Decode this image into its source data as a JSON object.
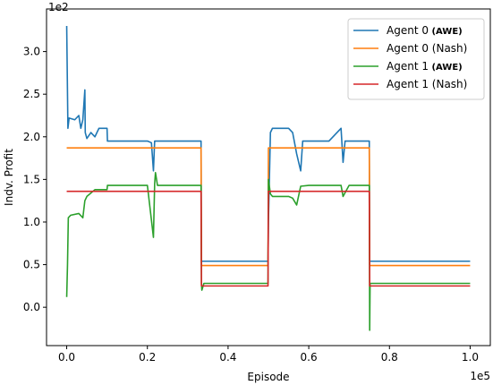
{
  "chart_data": {
    "type": "line",
    "title": "",
    "xlabel": "Episode",
    "ylabel": "Indv. Profit",
    "x_offset_text": "1e5",
    "y_offset_text": "1e2",
    "xlim": [
      -0.05,
      1.05
    ],
    "ylim": [
      -0.45,
      3.5
    ],
    "xticks": [
      0.0,
      0.2,
      0.4,
      0.6,
      0.8,
      1.0
    ],
    "xtick_labels": [
      "0.0",
      "0.2",
      "0.4",
      "0.6",
      "0.8",
      "1.0"
    ],
    "yticks": [
      0.0,
      0.5,
      1.0,
      1.5,
      2.0,
      2.5,
      3.0
    ],
    "ytick_labels": [
      "0.0",
      "0.5",
      "1.0",
      "1.5",
      "2.0",
      "2.5",
      "3.0"
    ],
    "grid": false,
    "legend_position": "top-right",
    "series": [
      {
        "name": "Agent 0",
        "name_suffix": "(AWE)",
        "color": "#1f77b4",
        "points": [
          [
            0.0,
            3.3
          ],
          [
            0.003,
            2.1
          ],
          [
            0.006,
            2.22
          ],
          [
            0.02,
            2.2
          ],
          [
            0.03,
            2.25
          ],
          [
            0.035,
            2.1
          ],
          [
            0.04,
            2.2
          ],
          [
            0.045,
            2.55
          ],
          [
            0.046,
            2.05
          ],
          [
            0.05,
            1.98
          ],
          [
            0.06,
            2.05
          ],
          [
            0.07,
            2.0
          ],
          [
            0.08,
            2.1
          ],
          [
            0.1,
            2.1
          ],
          [
            0.101,
            1.95
          ],
          [
            0.15,
            1.95
          ],
          [
            0.2,
            1.95
          ],
          [
            0.21,
            1.93
          ],
          [
            0.215,
            1.6
          ],
          [
            0.218,
            1.95
          ],
          [
            0.25,
            1.95
          ],
          [
            0.3,
            1.95
          ],
          [
            0.333,
            1.95
          ],
          [
            0.334,
            0.54
          ],
          [
            0.4,
            0.54
          ],
          [
            0.49,
            0.54
          ],
          [
            0.499,
            0.54
          ],
          [
            0.5,
            1.0
          ],
          [
            0.505,
            2.05
          ],
          [
            0.51,
            2.1
          ],
          [
            0.55,
            2.1
          ],
          [
            0.56,
            2.05
          ],
          [
            0.57,
            1.8
          ],
          [
            0.58,
            1.6
          ],
          [
            0.585,
            1.95
          ],
          [
            0.6,
            1.95
          ],
          [
            0.65,
            1.95
          ],
          [
            0.68,
            2.1
          ],
          [
            0.685,
            1.7
          ],
          [
            0.69,
            1.95
          ],
          [
            0.7,
            1.95
          ],
          [
            0.75,
            1.95
          ],
          [
            0.751,
            0.54
          ],
          [
            0.8,
            0.54
          ],
          [
            0.9,
            0.54
          ],
          [
            1.0,
            0.54
          ]
        ]
      },
      {
        "name": "Agent 0 (Nash)",
        "name_suffix": "",
        "color": "#ff7f0e",
        "points": [
          [
            0.0,
            1.87
          ],
          [
            0.333,
            1.87
          ],
          [
            0.334,
            0.49
          ],
          [
            0.499,
            0.49
          ],
          [
            0.5,
            1.87
          ],
          [
            0.75,
            1.87
          ],
          [
            0.751,
            0.49
          ],
          [
            1.0,
            0.49
          ]
        ]
      },
      {
        "name": "Agent 1",
        "name_suffix": "(AWE)",
        "color": "#2ca02c",
        "points": [
          [
            0.0,
            0.12
          ],
          [
            0.002,
            0.5
          ],
          [
            0.004,
            1.05
          ],
          [
            0.01,
            1.08
          ],
          [
            0.03,
            1.1
          ],
          [
            0.04,
            1.05
          ],
          [
            0.045,
            1.25
          ],
          [
            0.05,
            1.3
          ],
          [
            0.07,
            1.38
          ],
          [
            0.1,
            1.38
          ],
          [
            0.101,
            1.43
          ],
          [
            0.18,
            1.43
          ],
          [
            0.2,
            1.43
          ],
          [
            0.215,
            0.82
          ],
          [
            0.218,
            1.45
          ],
          [
            0.22,
            1.58
          ],
          [
            0.225,
            1.43
          ],
          [
            0.3,
            1.43
          ],
          [
            0.333,
            1.43
          ],
          [
            0.334,
            0.28
          ],
          [
            0.335,
            0.2
          ],
          [
            0.34,
            0.28
          ],
          [
            0.499,
            0.28
          ],
          [
            0.5,
            1.5
          ],
          [
            0.505,
            1.33
          ],
          [
            0.51,
            1.3
          ],
          [
            0.55,
            1.3
          ],
          [
            0.56,
            1.28
          ],
          [
            0.57,
            1.2
          ],
          [
            0.58,
            1.42
          ],
          [
            0.6,
            1.43
          ],
          [
            0.68,
            1.43
          ],
          [
            0.685,
            1.3
          ],
          [
            0.7,
            1.43
          ],
          [
            0.75,
            1.43
          ],
          [
            0.751,
            -0.27
          ],
          [
            0.752,
            0.28
          ],
          [
            0.8,
            0.28
          ],
          [
            1.0,
            0.28
          ]
        ]
      },
      {
        "name": "Agent 1 (Nash)",
        "name_suffix": "",
        "color": "#d62728",
        "points": [
          [
            0.0,
            1.36
          ],
          [
            0.333,
            1.36
          ],
          [
            0.334,
            0.25
          ],
          [
            0.499,
            0.25
          ],
          [
            0.5,
            1.36
          ],
          [
            0.75,
            1.36
          ],
          [
            0.751,
            0.25
          ],
          [
            1.0,
            0.25
          ]
        ]
      }
    ]
  }
}
